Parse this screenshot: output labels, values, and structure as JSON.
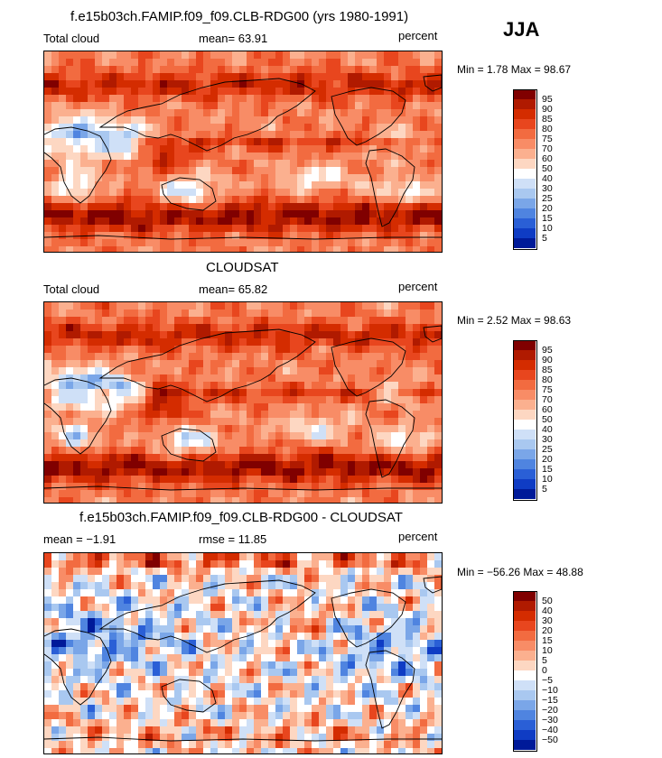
{
  "season": "JJA",
  "panels": [
    {
      "title": "f.e15b03ch.FAMIP.f09_f09.CLB-RDG00 (yrs 1980-1991)",
      "left_label": "Total cloud",
      "center_label": "mean=  63.91",
      "right_label": "percent",
      "minmax": "Min =    1.78 Max =   98.67",
      "colorbar": {
        "labels": [
          "95",
          "90",
          "85",
          "80",
          "75",
          "70",
          "60",
          "50",
          "40",
          "30",
          "25",
          "20",
          "15",
          "10",
          "5"
        ],
        "colors": [
          "#800000",
          "#b01a00",
          "#d42c00",
          "#e8461e",
          "#f26b40",
          "#f88c66",
          "#fbb08f",
          "#fdd7c2",
          "#ffffff",
          "#cfe0f7",
          "#a9c8f0",
          "#7aa6e8",
          "#4f84e0",
          "#2a5fd6",
          "#0f3cc4",
          "#001a99"
        ]
      },
      "mode": "model"
    },
    {
      "title": "CLOUDSAT",
      "left_label": "Total cloud",
      "center_label": "mean=  65.82",
      "right_label": "percent",
      "minmax": "Min =    2.52 Max =   98.63",
      "colorbar": {
        "labels": [
          "95",
          "90",
          "85",
          "80",
          "75",
          "70",
          "60",
          "50",
          "40",
          "30",
          "25",
          "20",
          "15",
          "10",
          "5"
        ],
        "colors": [
          "#800000",
          "#b01a00",
          "#d42c00",
          "#e8461e",
          "#f26b40",
          "#f88c66",
          "#fbb08f",
          "#fdd7c2",
          "#ffffff",
          "#cfe0f7",
          "#a9c8f0",
          "#7aa6e8",
          "#4f84e0",
          "#2a5fd6",
          "#0f3cc4",
          "#001a99"
        ]
      },
      "mode": "obs"
    },
    {
      "title": "f.e15b03ch.FAMIP.f09_f09.CLB-RDG00 - CLOUDSAT",
      "left_label": "mean =   −1.91",
      "center_label": "rmse =   11.85",
      "right_label": "percent",
      "minmax": "Min = −56.26 Max =   48.88",
      "colorbar": {
        "labels": [
          "50",
          "40",
          "30",
          "20",
          "15",
          "10",
          "5",
          "0",
          "−5",
          "−10",
          "−15",
          "−20",
          "−30",
          "−40",
          "−50"
        ],
        "colors": [
          "#800000",
          "#b01a00",
          "#d42c00",
          "#e8461e",
          "#f26b40",
          "#f88c66",
          "#fbb08f",
          "#fdd7c2",
          "#ffffff",
          "#cfe0f7",
          "#a9c8f0",
          "#7aa6e8",
          "#4f84e0",
          "#2a5fd6",
          "#0f3cc4",
          "#001a99"
        ]
      },
      "mode": "diff"
    }
  ]
}
